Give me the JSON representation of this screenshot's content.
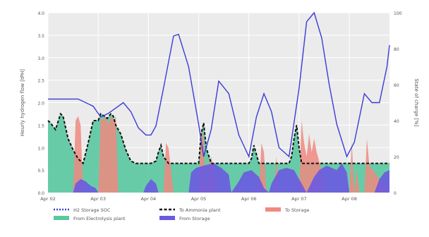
{
  "chart_data": {
    "type": "area",
    "xlabel": "",
    "ylabel_left": "Hourly hydrogen flow [tPH]",
    "ylabel_right": "State of charge [%]",
    "x_ticks": [
      "Apr 02",
      "Apr 03",
      "Apr 04",
      "Apr 05",
      "Apr 06",
      "Apr 07",
      "Apr 08"
    ],
    "x_range_days": [
      2.0,
      8.8
    ],
    "y_left_range": [
      0,
      4
    ],
    "y_left_ticks": [
      "0.0",
      "0.5",
      "1.0",
      "1.5",
      "2.0",
      "2.5",
      "3.0",
      "3.5",
      "4.0"
    ],
    "y_right_range": [
      0,
      100
    ],
    "y_right_ticks": [
      "0",
      "20",
      "40",
      "60",
      "80",
      "100"
    ],
    "grid": true,
    "background": "#ebebeb",
    "legend_position": "bottom-left",
    "legend": [
      {
        "name": "H2 Storage SOC",
        "style": "dotted-line",
        "color": "#3b3bd9"
      },
      {
        "name": "To Ammonia plant",
        "style": "dashed-line",
        "color": "#111111"
      },
      {
        "name": "To Storage",
        "style": "area",
        "color": "#f08a80"
      },
      {
        "name": "From Electrolysis plant",
        "style": "area",
        "color": "#5ac8a0"
      },
      {
        "name": "From Storage",
        "style": "area",
        "color": "#6a5ae0"
      }
    ],
    "series": [
      {
        "name": "From Electrolysis plant",
        "axis": "left",
        "color": "#5ac8a0",
        "x": [
          2.0,
          2.05,
          2.15,
          2.25,
          2.3,
          2.4,
          2.5,
          2.6,
          2.7,
          2.8,
          2.9,
          3.0,
          3.05,
          3.12,
          3.18,
          3.25,
          3.3,
          3.35,
          3.45,
          3.55,
          3.65,
          3.75,
          3.85,
          3.95,
          4.05,
          4.15,
          4.2,
          4.25,
          4.3,
          4.4,
          4.6,
          4.8,
          5.0,
          5.05,
          5.1,
          5.15,
          5.25,
          5.35,
          5.45,
          5.6,
          5.8,
          6.0,
          6.05,
          6.1,
          6.15,
          6.2,
          6.3,
          6.4,
          6.6,
          6.8,
          6.85,
          6.9,
          6.95,
          7.0,
          7.05,
          7.1,
          7.2,
          7.3,
          7.5,
          7.7,
          7.9,
          8.0,
          8.1,
          8.2,
          8.3,
          8.5,
          8.7,
          8.8
        ],
        "values": [
          1.6,
          1.55,
          1.4,
          1.75,
          1.7,
          1.2,
          0.95,
          0.75,
          0.65,
          1.1,
          1.6,
          1.6,
          1.75,
          1.7,
          1.65,
          1.75,
          1.7,
          1.5,
          1.3,
          0.95,
          0.7,
          0.65,
          0.65,
          0.65,
          0.65,
          0.7,
          0.9,
          1.05,
          0.8,
          0.65,
          0.65,
          0.65,
          0.65,
          1.3,
          1.55,
          1.0,
          0.65,
          0.65,
          0.65,
          0.65,
          0.65,
          0.65,
          0.75,
          1.05,
          0.85,
          0.65,
          0.65,
          0.65,
          0.65,
          0.65,
          0.8,
          1.2,
          1.5,
          1.0,
          0.65,
          0.65,
          0.65,
          0.65,
          0.65,
          0.65,
          0.65,
          0.65,
          0.65,
          0.65,
          0.65,
          0.65,
          0.65,
          0.65
        ]
      },
      {
        "name": "To Storage",
        "axis": "left",
        "color": "#f08a80",
        "x": [
          2.0,
          2.5,
          2.55,
          2.6,
          2.65,
          2.7,
          3.0,
          3.05,
          3.1,
          3.15,
          3.2,
          3.25,
          3.3,
          3.35,
          3.4,
          4.0,
          4.3,
          4.35,
          4.4,
          4.45,
          4.5,
          5.0,
          5.05,
          5.1,
          5.15,
          5.2,
          5.25,
          5.3,
          5.35,
          5.4,
          6.0,
          6.2,
          6.25,
          6.3,
          6.35,
          6.4,
          6.5,
          6.55,
          6.6,
          7.0,
          7.05,
          7.1,
          7.15,
          7.2,
          7.25,
          7.3,
          7.35,
          7.4,
          7.45,
          7.5,
          8.0,
          8.05,
          8.1,
          8.15,
          8.2,
          8.3,
          8.35,
          8.4,
          8.8
        ],
        "values": [
          0,
          0,
          1.6,
          1.7,
          1.5,
          0,
          0,
          1.7,
          1.6,
          1.7,
          1.5,
          1.7,
          1.6,
          1.7,
          0,
          0,
          0,
          1.1,
          1.0,
          0.5,
          0,
          0,
          1.4,
          1.2,
          0,
          0.6,
          0.8,
          0.5,
          0,
          0,
          0,
          0,
          1.1,
          0.9,
          0,
          0,
          0,
          0.8,
          0,
          0,
          1.6,
          1.1,
          0.8,
          1.3,
          0.9,
          1.2,
          0.9,
          0.7,
          0.5,
          0,
          0,
          1.1,
          0,
          0.5,
          0,
          0,
          1.2,
          0.6,
          0
        ]
      },
      {
        "name": "From Storage",
        "axis": "left",
        "color": "#6a5ae0",
        "x": [
          2.0,
          2.5,
          2.55,
          2.65,
          2.75,
          2.85,
          2.95,
          3.0,
          3.9,
          3.95,
          4.05,
          4.15,
          4.2,
          4.8,
          4.85,
          4.95,
          5.1,
          5.3,
          5.45,
          5.6,
          5.65,
          5.8,
          5.9,
          6.05,
          6.2,
          6.3,
          6.4,
          6.45,
          6.6,
          6.75,
          6.9,
          7.05,
          7.15,
          7.3,
          7.4,
          7.55,
          7.65,
          7.75,
          7.85,
          7.95,
          8.0,
          8.3,
          8.5,
          8.6,
          8.7,
          8.8
        ],
        "values": [
          0,
          0,
          0.2,
          0.3,
          0.25,
          0.15,
          0.1,
          0,
          0,
          0.15,
          0.3,
          0.2,
          0,
          0,
          0.45,
          0.55,
          0.6,
          0.65,
          0.55,
          0.4,
          0,
          0.25,
          0.45,
          0.5,
          0.35,
          0.1,
          0,
          0.2,
          0.5,
          0.55,
          0.5,
          0.2,
          0,
          0.35,
          0.5,
          0.6,
          0.55,
          0.5,
          0.65,
          0.45,
          0,
          0,
          0,
          0.3,
          0.45,
          0.5
        ]
      },
      {
        "name": "To Ammonia plant",
        "axis": "left",
        "color": "#111111",
        "x": [
          2.0,
          2.05,
          2.15,
          2.25,
          2.3,
          2.4,
          2.5,
          2.6,
          2.7,
          2.8,
          2.9,
          3.0,
          3.05,
          3.12,
          3.18,
          3.25,
          3.3,
          3.35,
          3.45,
          3.55,
          3.65,
          3.75,
          3.85,
          3.95,
          4.05,
          4.15,
          4.2,
          4.25,
          4.3,
          4.4,
          4.6,
          4.8,
          5.0,
          5.05,
          5.1,
          5.15,
          5.25,
          5.35,
          5.45,
          5.6,
          5.8,
          6.0,
          6.05,
          6.1,
          6.15,
          6.2,
          6.3,
          6.4,
          6.6,
          6.8,
          6.85,
          6.9,
          6.95,
          7.0,
          7.05,
          7.1,
          7.2,
          7.3,
          7.5,
          7.7,
          7.9,
          8.0,
          8.1,
          8.2,
          8.3,
          8.5,
          8.7,
          8.8
        ],
        "values": [
          1.6,
          1.55,
          1.4,
          1.75,
          1.7,
          1.2,
          0.95,
          0.75,
          0.65,
          1.1,
          1.6,
          1.6,
          1.75,
          1.7,
          1.65,
          1.75,
          1.7,
          1.5,
          1.3,
          0.95,
          0.7,
          0.65,
          0.65,
          0.65,
          0.65,
          0.7,
          0.9,
          1.05,
          0.8,
          0.65,
          0.65,
          0.65,
          0.65,
          1.3,
          1.55,
          1.0,
          0.65,
          0.65,
          0.65,
          0.65,
          0.65,
          0.65,
          0.75,
          1.05,
          0.85,
          0.65,
          0.65,
          0.65,
          0.65,
          0.65,
          0.8,
          1.2,
          1.5,
          1.0,
          0.65,
          0.65,
          0.65,
          0.65,
          0.65,
          0.65,
          0.65,
          0.65,
          0.65,
          0.65,
          0.65,
          0.65,
          0.65,
          0.65
        ]
      },
      {
        "name": "H2 Storage SOC",
        "axis": "right",
        "color": "#3b3bd9",
        "x": [
          2.0,
          2.3,
          2.6,
          2.9,
          3.05,
          3.2,
          3.35,
          3.5,
          3.65,
          3.8,
          3.95,
          4.05,
          4.15,
          4.3,
          4.5,
          4.6,
          4.8,
          5.0,
          5.1,
          5.25,
          5.4,
          5.6,
          5.8,
          6.0,
          6.15,
          6.3,
          6.45,
          6.6,
          6.8,
          7.0,
          7.15,
          7.3,
          7.45,
          7.6,
          7.75,
          7.95,
          8.1,
          8.3,
          8.45,
          8.6,
          8.75,
          8.8
        ],
        "values": [
          52,
          52,
          52,
          48,
          42,
          44,
          47,
          50,
          45,
          36,
          32,
          32,
          37,
          58,
          87,
          88,
          70,
          38,
          20,
          35,
          62,
          55,
          32,
          20,
          42,
          55,
          45,
          25,
          20,
          58,
          95,
          100,
          86,
          60,
          38,
          20,
          28,
          55,
          50,
          50,
          70,
          82
        ]
      }
    ]
  }
}
